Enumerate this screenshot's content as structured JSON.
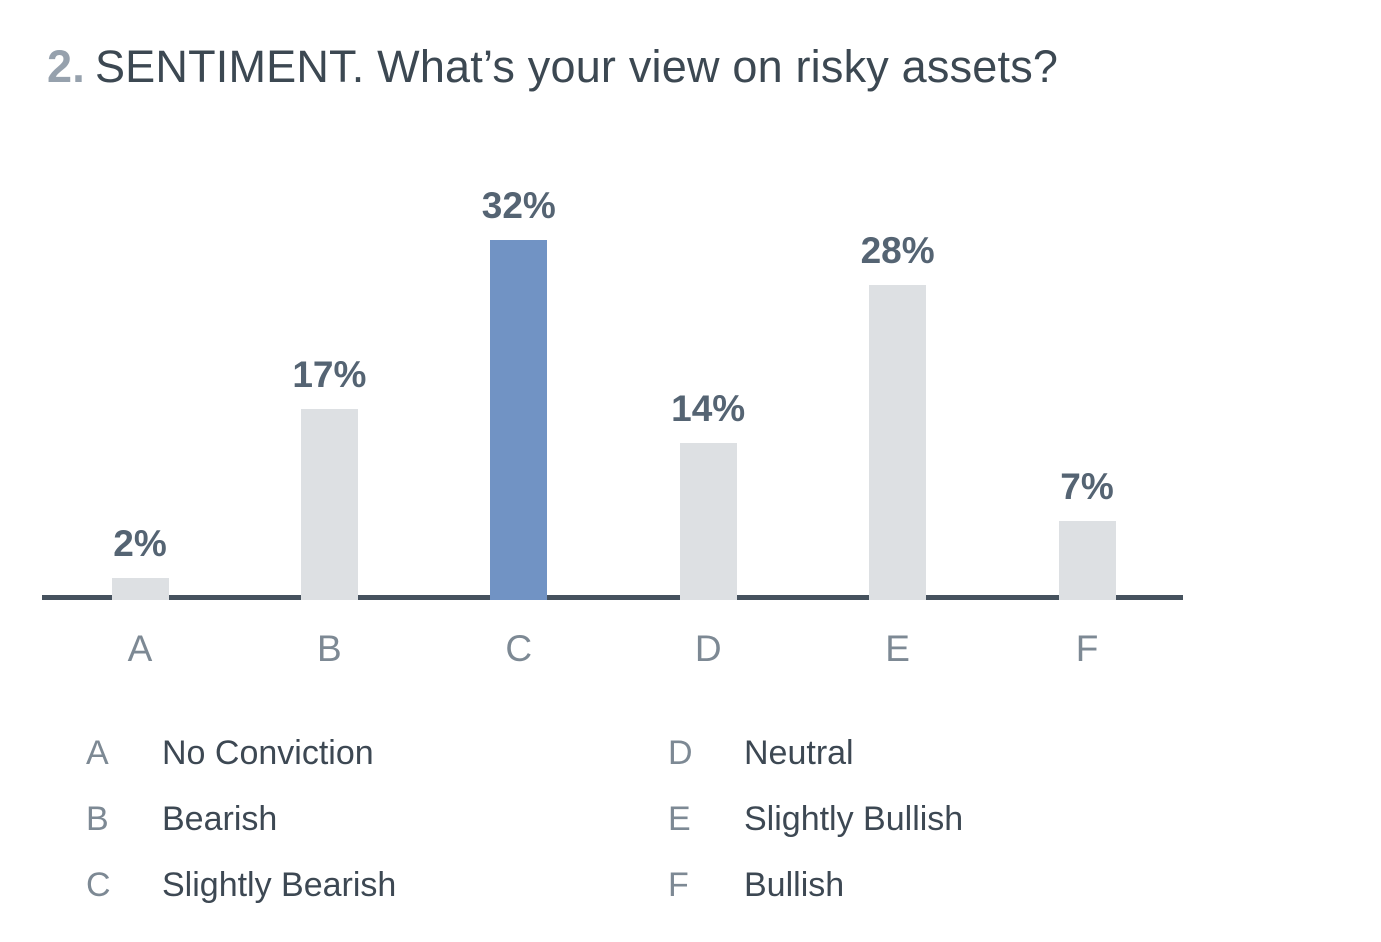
{
  "title": {
    "number": "2.",
    "text": "SENTIMENT. What’s your view on risky assets?"
  },
  "chart_data": {
    "type": "bar",
    "title": "2. SENTIMENT. What’s your view on risky assets?",
    "categories": [
      "A",
      "B",
      "C",
      "D",
      "E",
      "F"
    ],
    "values": [
      2,
      17,
      32,
      14,
      28,
      7
    ],
    "value_labels": [
      "2%",
      "17%",
      "32%",
      "14%",
      "28%",
      "7%"
    ],
    "highlight_index": 2,
    "xlabel": "",
    "ylabel": "",
    "ylim": [
      0,
      32
    ],
    "grid": false,
    "legend_position": "below",
    "colors": {
      "bar": "#dde0e3",
      "highlight": "#7193c4",
      "axis": "#46525e",
      "value_label": "#556473",
      "category_label": "#7d8994"
    }
  },
  "legend": {
    "items": [
      {
        "key": "A",
        "label": "No Conviction"
      },
      {
        "key": "B",
        "label": "Bearish"
      },
      {
        "key": "C",
        "label": "Slightly Bearish"
      },
      {
        "key": "D",
        "label": "Neutral"
      },
      {
        "key": "E",
        "label": "Slightly Bullish"
      },
      {
        "key": "F",
        "label": "Bullish"
      }
    ]
  }
}
